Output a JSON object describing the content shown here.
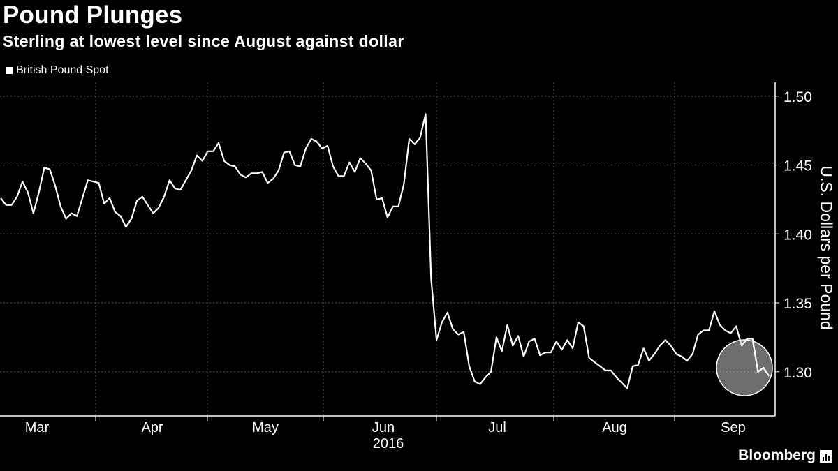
{
  "chart_data": {
    "type": "line",
    "title": "Pound Plunges",
    "subtitle": "Sterling at lowest level since August against dollar",
    "ylabel": "U.S. Dollars per Pound",
    "year_label": "2016",
    "x_tick_labels": [
      "Mar",
      "Apr",
      "May",
      "Jun",
      "Jul",
      "Aug",
      "Sep"
    ],
    "y_ticks": [
      1.3,
      1.35,
      1.4,
      1.45,
      1.5
    ],
    "y_tick_labels": [
      "1.30",
      "1.35",
      "1.40",
      "1.45",
      "1.50"
    ],
    "ylim": [
      1.268,
      1.51
    ],
    "grid": true,
    "legend_position": "top-left",
    "highlight": "circle around latest values",
    "series": [
      {
        "name": "British Pound Spot",
        "color": "#ffffff",
        "values": [
          1.426,
          1.421,
          1.421,
          1.427,
          1.438,
          1.43,
          1.415,
          1.43,
          1.448,
          1.447,
          1.435,
          1.42,
          1.411,
          1.415,
          1.413,
          1.426,
          1.439,
          1.438,
          1.437,
          1.422,
          1.426,
          1.416,
          1.413,
          1.405,
          1.411,
          1.424,
          1.427,
          1.421,
          1.415,
          1.419,
          1.427,
          1.439,
          1.433,
          1.432,
          1.439,
          1.446,
          1.457,
          1.453,
          1.46,
          1.46,
          1.466,
          1.453,
          1.45,
          1.449,
          1.443,
          1.441,
          1.444,
          1.444,
          1.445,
          1.437,
          1.44,
          1.446,
          1.459,
          1.46,
          1.45,
          1.449,
          1.462,
          1.469,
          1.467,
          1.462,
          1.464,
          1.449,
          1.442,
          1.442,
          1.452,
          1.445,
          1.455,
          1.451,
          1.446,
          1.425,
          1.426,
          1.412,
          1.42,
          1.42,
          1.436,
          1.469,
          1.465,
          1.47,
          1.487,
          1.368,
          1.323,
          1.336,
          1.343,
          1.331,
          1.327,
          1.329,
          1.304,
          1.293,
          1.291,
          1.296,
          1.3,
          1.325,
          1.315,
          1.334,
          1.319,
          1.326,
          1.311,
          1.322,
          1.324,
          1.312,
          1.314,
          1.314,
          1.322,
          1.316,
          1.323,
          1.317,
          1.336,
          1.333,
          1.31,
          1.307,
          1.304,
          1.301,
          1.301,
          1.296,
          1.292,
          1.288,
          1.304,
          1.305,
          1.317,
          1.308,
          1.313,
          1.319,
          1.323,
          1.319,
          1.313,
          1.311,
          1.308,
          1.313,
          1.327,
          1.33,
          1.33,
          1.344,
          1.334,
          1.33,
          1.328,
          1.333,
          1.319,
          1.324,
          1.324,
          1.3,
          1.303,
          1.297
        ]
      }
    ]
  },
  "legend": {
    "label": "British Pound Spot"
  },
  "brand": {
    "name": "Bloomberg"
  }
}
